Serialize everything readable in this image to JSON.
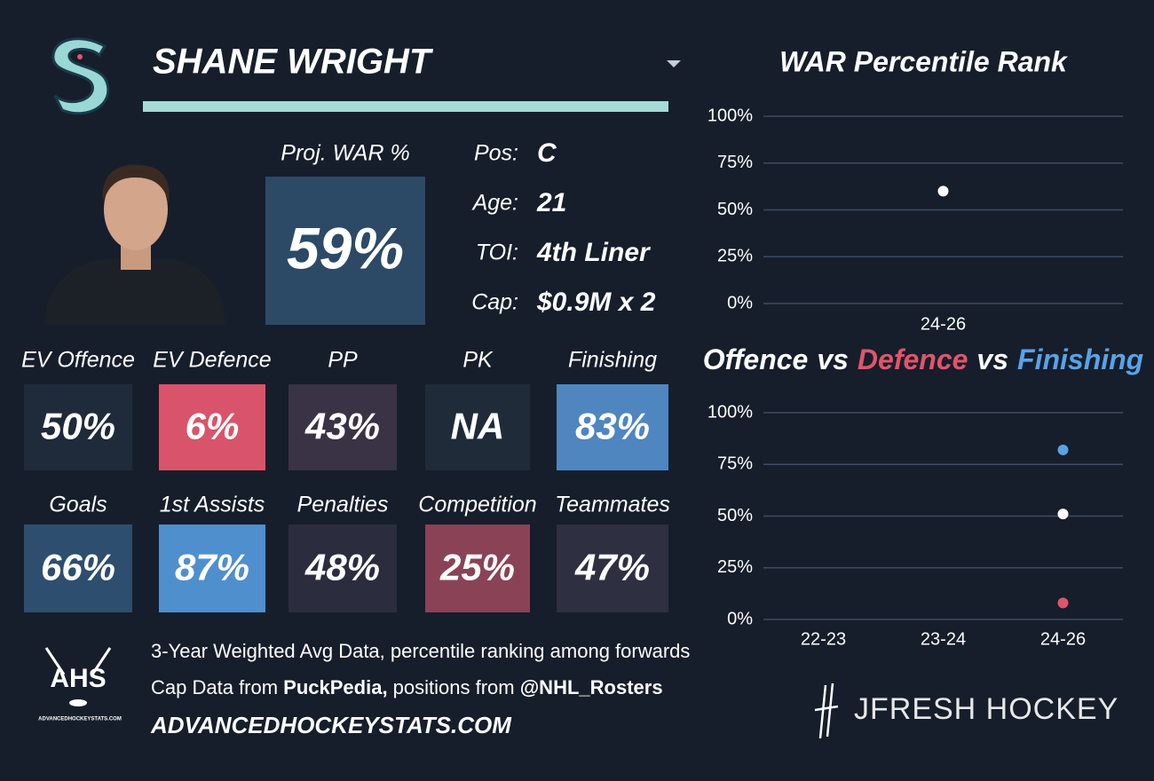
{
  "header": {
    "name": "SHANE WRIGHT"
  },
  "projection": {
    "label": "Proj. WAR %",
    "value": "59%",
    "color": "#2c4a66"
  },
  "bio": [
    {
      "label": "Pos:",
      "value": "C"
    },
    {
      "label": "Age:",
      "value": "21"
    },
    {
      "label": "TOI:",
      "value": "4th Liner"
    },
    {
      "label": "Cap:",
      "value": "$0.9M x 2"
    }
  ],
  "tiles": [
    {
      "label": "EV Offence",
      "value": "50%",
      "color": "#1f2a3b"
    },
    {
      "label": "EV Defence",
      "value": "6%",
      "color": "#d9546a"
    },
    {
      "label": "PP",
      "value": "43%",
      "color": "#3a3245"
    },
    {
      "label": "PK",
      "value": "NA",
      "color": "#1f2b39"
    },
    {
      "label": "Finishing",
      "value": "83%",
      "color": "#4f86c0"
    },
    {
      "label": "Goals",
      "value": "66%",
      "color": "#2d4e6e"
    },
    {
      "label": "1st Assists",
      "value": "87%",
      "color": "#4f8fce"
    },
    {
      "label": "Penalties",
      "value": "48%",
      "color": "#2b2d3e"
    },
    {
      "label": "Competition",
      "value": "25%",
      "color": "#8a4257"
    },
    {
      "label": "Teammates",
      "value": "47%",
      "color": "#2e2f41"
    }
  ],
  "chart_data": [
    {
      "type": "scatter",
      "title": "WAR Percentile Rank",
      "categories": [
        "24-26"
      ],
      "series": [
        {
          "color": "#ffffff",
          "values": [
            60
          ]
        }
      ],
      "ylim": [
        0,
        100
      ],
      "yticks": [
        {
          "value": 0,
          "label": "0%"
        },
        {
          "value": 25,
          "label": "25%"
        },
        {
          "value": 50,
          "label": "50%"
        },
        {
          "value": 75,
          "label": "75%"
        },
        {
          "value": 100,
          "label": "100%"
        }
      ],
      "grid": true
    },
    {
      "type": "scatter",
      "title_separator": "vs",
      "categories": [
        "22-23",
        "23-24",
        "24-26"
      ],
      "series": [
        {
          "name": "Offence",
          "color": "#ffffff",
          "values": [
            null,
            null,
            51
          ]
        },
        {
          "name": "Defence",
          "color": "#e0556a",
          "values": [
            null,
            null,
            8
          ]
        },
        {
          "name": "Finishing",
          "color": "#5aa2e8",
          "values": [
            null,
            null,
            82
          ]
        }
      ],
      "ylim": [
        0,
        100
      ],
      "yticks": [
        {
          "value": 0,
          "label": "0%"
        },
        {
          "value": 25,
          "label": "25%"
        },
        {
          "value": 50,
          "label": "50%"
        },
        {
          "value": 75,
          "label": "75%"
        },
        {
          "value": 100,
          "label": "100%"
        }
      ],
      "grid": true
    }
  ],
  "footer": {
    "logo": "AHS",
    "note": "3-Year Weighted Avg Data, percentile ranking among forwards",
    "credit_parts": [
      {
        "text": "Cap Data from ",
        "bold": false
      },
      {
        "text": "PuckPedia,",
        "bold": true
      },
      {
        "text": " positions from ",
        "bold": false
      },
      {
        "text": "@NHL_Rosters",
        "bold": true
      }
    ],
    "website": "ADVANCEDHOCKEYSTATS.COM",
    "brand": "JFRESH HOCKEY"
  }
}
